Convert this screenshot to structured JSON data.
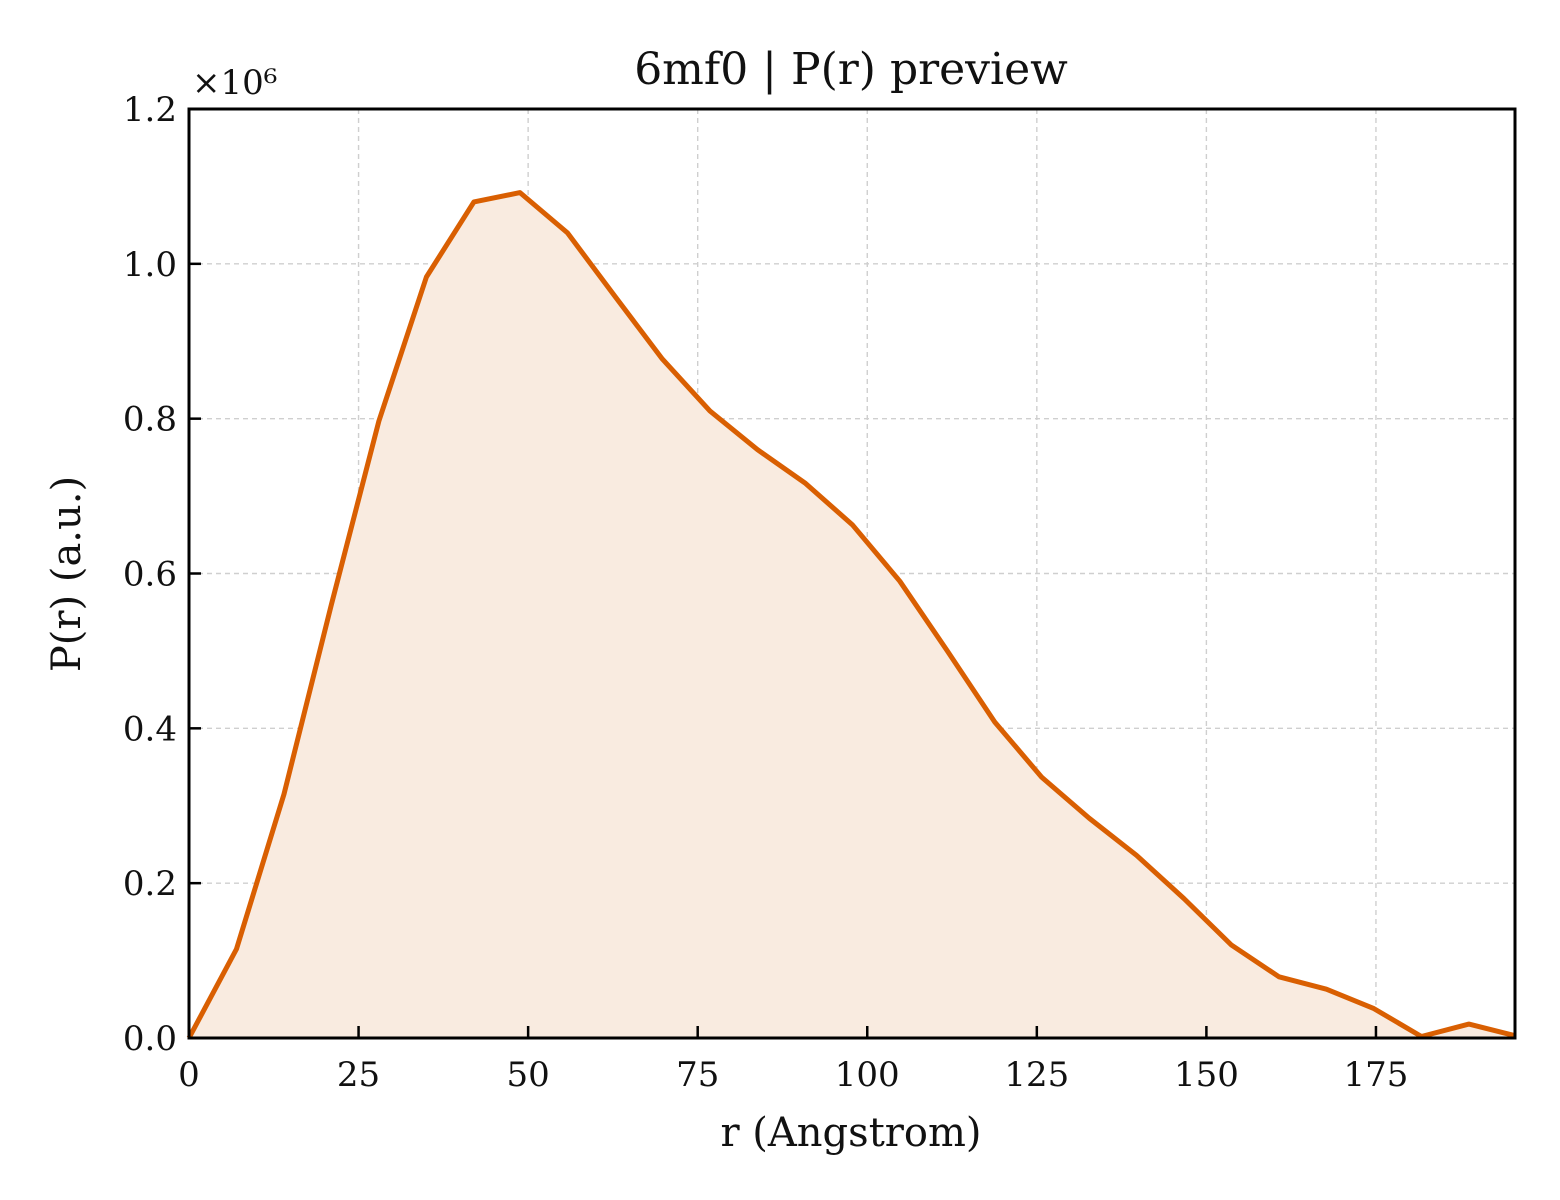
{
  "chart_data": {
    "type": "area",
    "title": "6mf0 | P(r) preview",
    "xlabel": "r (Angstrom)",
    "ylabel": "P(r) (a.u.)",
    "y_multiplier": "×10⁶",
    "xlim": [
      0,
      195.5
    ],
    "ylim": [
      0,
      1.2
    ],
    "xticks": [
      0,
      25,
      50,
      75,
      100,
      125,
      150,
      175
    ],
    "yticks": [
      0.0,
      0.2,
      0.4,
      0.6,
      0.8,
      1.0,
      1.2
    ],
    "xtick_labels": [
      "0",
      "25",
      "50",
      "75",
      "100",
      "125",
      "150",
      "175"
    ],
    "ytick_labels": [
      "0.0",
      "0.2",
      "0.4",
      "0.6",
      "0.8",
      "1.0",
      "1.2"
    ],
    "grid": true,
    "series": [
      {
        "color": "#d95f02",
        "fill_color": "#f9ebe0",
        "x": [
          0,
          7,
          14,
          21,
          28,
          35,
          42,
          48.8,
          55.8,
          62.8,
          69.8,
          76.8,
          83.8,
          90.8,
          97.8,
          104.8,
          111.8,
          118.8,
          125.7,
          132.7,
          139.7,
          146.7,
          153.7,
          160.7,
          167.7,
          174.7,
          181.7,
          188.7,
          195.5
        ],
        "values": [
          0,
          0.115,
          0.315,
          0.56,
          0.797,
          0.983,
          1.08,
          1.092,
          1.04,
          0.958,
          0.877,
          0.81,
          0.76,
          0.717,
          0.663,
          0.59,
          0.5,
          0.408,
          0.337,
          0.284,
          0.236,
          0.18,
          0.12,
          0.079,
          0.063,
          0.038,
          0.002,
          0.018,
          0.003
        ]
      }
    ]
  }
}
